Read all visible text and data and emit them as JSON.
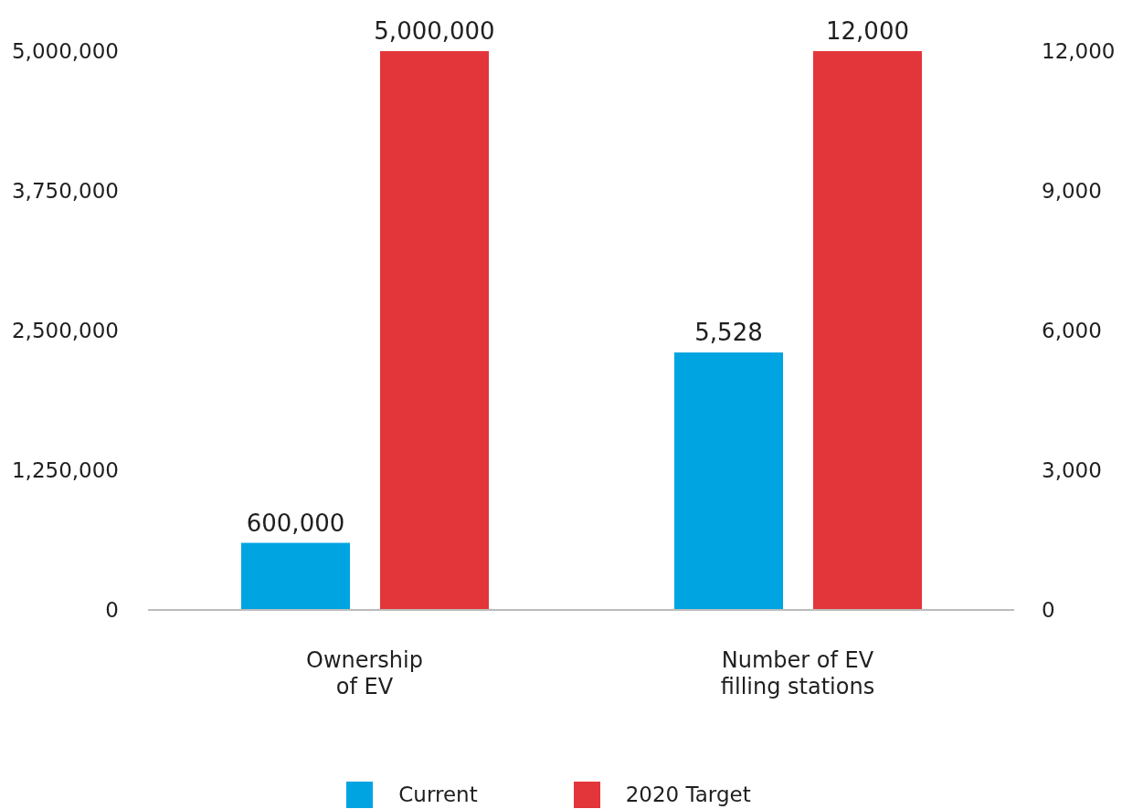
{
  "chart_data": {
    "type": "bar",
    "categories": [
      "Ownership\nof EV",
      "Number of EV\nfilling stations"
    ],
    "series": [
      {
        "name": "Current",
        "color": "#00a4e1",
        "values": [
          600000,
          null
        ],
        "value_labels": [
          "600,000",
          null
        ]
      },
      {
        "name": "2020 Target",
        "color": "#e3363a",
        "values": [
          5000000,
          null
        ],
        "value_labels": [
          "5,000,000",
          null
        ]
      },
      {
        "color": "#00a4e1",
        "values": [
          null,
          5528
        ],
        "value_labels": [
          null,
          "5,528"
        ],
        "axis": "y2"
      },
      {
        "color": "#e3363a",
        "values": [
          null,
          12000
        ],
        "value_labels": [
          null,
          "12,000"
        ],
        "axis": "y2"
      }
    ],
    "ylim": [
      0,
      5000000
    ],
    "yticks": [
      0,
      {
        "value": 1250000,
        "label": "1,250,000"
      },
      {
        "value": 2500000,
        "label": "2,500,000"
      },
      {
        "value": 3750000,
        "label": "3,750,000"
      },
      {
        "value": 5000000,
        "label": "5,000,000"
      }
    ],
    "y2lim": [
      0,
      12000
    ],
    "y2ticks": [
      0,
      {
        "value": 3000,
        "label": "3,000"
      },
      {
        "value": 6000,
        "label": "6,000"
      },
      {
        "value": 9000,
        "label": "9,000"
      },
      {
        "value": 12000,
        "label": "12,000"
      }
    ],
    "legend": "bottom"
  }
}
